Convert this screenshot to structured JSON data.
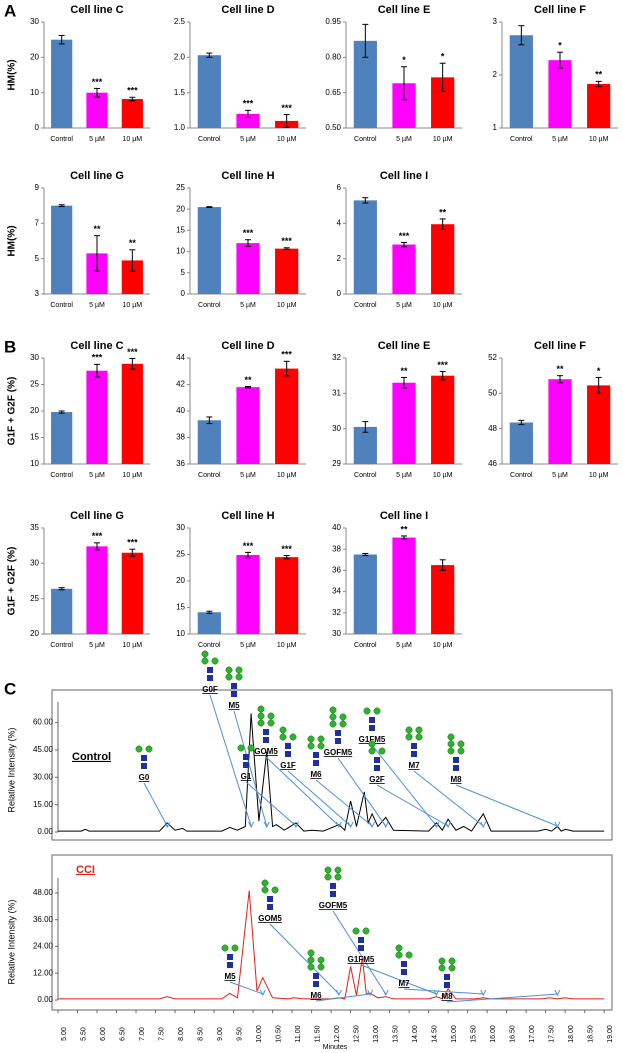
{
  "panel_labels": [
    "A",
    "B",
    "C"
  ],
  "chart_data": [
    {
      "type": "bar",
      "title": "Cell line C",
      "y_label": "HM(%)",
      "categories": [
        "Control",
        "5 µM",
        "10 µM"
      ],
      "colors": [
        "#4f81bd",
        "#ff00ff",
        "#ff0000"
      ],
      "values": [
        25,
        10,
        8.2
      ],
      "errors": [
        1.2,
        1.2,
        0.5
      ],
      "significance": [
        null,
        "***",
        "***"
      ],
      "ylim": [
        0,
        30
      ],
      "yticks": [
        0,
        10,
        20,
        30
      ]
    },
    {
      "type": "bar",
      "title": "Cell line D",
      "categories": [
        "Control",
        "5 µM",
        "10 µM"
      ],
      "colors": [
        "#4f81bd",
        "#ff00ff",
        "#ff0000"
      ],
      "values": [
        2.03,
        1.2,
        1.1
      ],
      "errors": [
        0.03,
        0.05,
        0.09
      ],
      "significance": [
        null,
        "***",
        "***"
      ],
      "ylim": [
        1,
        2.5
      ],
      "yticks": [
        {
          "value": 1,
          "label": "1.0"
        },
        {
          "value": 1.5,
          "label": "1.5"
        },
        {
          "value": 2,
          "label": "2.0"
        },
        {
          "value": 2.5,
          "label": "2.5"
        }
      ]
    },
    {
      "type": "bar",
      "title": "Cell line E",
      "categories": [
        "Control",
        "5 µM",
        "10 µM"
      ],
      "colors": [
        "#4f81bd",
        "#ff00ff",
        "#ff0000"
      ],
      "values": [
        0.87,
        0.69,
        0.715
      ],
      "errors": [
        0.07,
        0.07,
        0.06
      ],
      "significance": [
        null,
        "*",
        "*"
      ],
      "ylim": [
        0.5,
        0.95
      ],
      "yticks": [
        {
          "value": 0.5,
          "label": "0.50"
        },
        0.65,
        {
          "value": 0.8,
          "label": "0.80"
        },
        0.95
      ]
    },
    {
      "type": "bar",
      "title": "Cell line F",
      "categories": [
        "Control",
        "5 µM",
        "10 µM"
      ],
      "colors": [
        "#4f81bd",
        "#ff00ff",
        "#ff0000"
      ],
      "values": [
        2.75,
        2.28,
        1.83
      ],
      "errors": [
        0.18,
        0.15,
        0.05
      ],
      "significance": [
        null,
        "*",
        "**"
      ],
      "ylim": [
        1,
        3
      ],
      "yticks": [
        1,
        2,
        3
      ]
    },
    {
      "type": "bar",
      "title": "Cell line G",
      "y_label": "HM(%)",
      "categories": [
        "Control",
        "5 µM",
        "10 µM"
      ],
      "colors": [
        "#4f81bd",
        "#ff00ff",
        "#ff0000"
      ],
      "values": [
        8.0,
        5.3,
        4.9
      ],
      "errors": [
        0.05,
        1.0,
        0.6
      ],
      "significance": [
        null,
        "**",
        "**"
      ],
      "ylim": [
        3,
        9
      ],
      "yticks": [
        3,
        5,
        7,
        9
      ]
    },
    {
      "type": "bar",
      "title": "Cell line H",
      "categories": [
        "Control",
        "5 µM",
        "10 µM"
      ],
      "colors": [
        "#4f81bd",
        "#ff00ff",
        "#ff0000"
      ],
      "values": [
        20.5,
        12,
        10.7
      ],
      "errors": [
        0.1,
        0.8,
        0.2
      ],
      "significance": [
        null,
        "***",
        "***"
      ],
      "ylim": [
        0,
        25
      ],
      "yticks": [
        0,
        5,
        10,
        15,
        20,
        25
      ]
    },
    {
      "type": "bar",
      "title": "Cell line I",
      "categories": [
        "Control",
        "5 µM",
        "10 µM"
      ],
      "colors": [
        "#4f81bd",
        "#ff00ff",
        "#ff0000"
      ],
      "values": [
        5.3,
        2.8,
        3.95
      ],
      "errors": [
        0.15,
        0.12,
        0.3
      ],
      "significance": [
        null,
        "***",
        "**"
      ],
      "ylim": [
        0,
        6
      ],
      "yticks": [
        0,
        2,
        4,
        6
      ]
    },
    {
      "type": "bar",
      "title": "Cell line C",
      "y_label": "G1F + G2F (%)",
      "categories": [
        "Control",
        "5 µM",
        "10 µM"
      ],
      "colors": [
        "#4f81bd",
        "#ff00ff",
        "#ff0000"
      ],
      "values": [
        19.8,
        27.6,
        28.9
      ],
      "errors": [
        0.2,
        1.2,
        1.0
      ],
      "significance": [
        null,
        "***",
        "***"
      ],
      "ylim": [
        10,
        30
      ],
      "yticks": [
        10,
        15,
        20,
        25,
        30
      ]
    },
    {
      "type": "bar",
      "title": "Cell line D",
      "categories": [
        "Control",
        "5 µM",
        "10 µM"
      ],
      "colors": [
        "#4f81bd",
        "#ff00ff",
        "#ff0000"
      ],
      "values": [
        39.3,
        41.8,
        43.2
      ],
      "errors": [
        0.25,
        0.05,
        0.55
      ],
      "significance": [
        null,
        "**",
        "***"
      ],
      "ylim": [
        36,
        44
      ],
      "yticks": [
        36,
        38,
        40,
        42,
        44
      ]
    },
    {
      "type": "bar",
      "title": "Cell line E",
      "categories": [
        "Control",
        "5 µM",
        "10 µM"
      ],
      "colors": [
        "#4f81bd",
        "#ff00ff",
        "#ff0000"
      ],
      "values": [
        30.05,
        31.3,
        31.5
      ],
      "errors": [
        0.15,
        0.15,
        0.12
      ],
      "significance": [
        null,
        "**",
        "***"
      ],
      "ylim": [
        29,
        32
      ],
      "yticks": [
        29,
        30,
        31,
        32
      ]
    },
    {
      "type": "bar",
      "title": "Cell line F",
      "categories": [
        "Control",
        "5 µM",
        "10 µM"
      ],
      "colors": [
        "#4f81bd",
        "#ff00ff",
        "#ff0000"
      ],
      "values": [
        48.35,
        50.8,
        50.45
      ],
      "errors": [
        0.12,
        0.2,
        0.45
      ],
      "significance": [
        null,
        "**",
        "*"
      ],
      "ylim": [
        46,
        52
      ],
      "yticks": [
        46,
        48,
        50,
        52
      ]
    },
    {
      "type": "bar",
      "title": "Cell line G",
      "y_label": "G1F + G2F (%)",
      "categories": [
        "Control",
        "5 µM",
        "10 µM"
      ],
      "colors": [
        "#4f81bd",
        "#ff00ff",
        "#ff0000"
      ],
      "values": [
        26.4,
        32.4,
        31.5
      ],
      "errors": [
        0.15,
        0.5,
        0.5
      ],
      "significance": [
        null,
        "***",
        "***"
      ],
      "ylim": [
        20,
        35
      ],
      "yticks": [
        20,
        25,
        30,
        35
      ]
    },
    {
      "type": "bar",
      "title": "Cell line H",
      "categories": [
        "Control",
        "5 µM",
        "10 µM"
      ],
      "colors": [
        "#4f81bd",
        "#ff00ff",
        "#ff0000"
      ],
      "values": [
        14.1,
        24.9,
        24.5
      ],
      "errors": [
        0.2,
        0.5,
        0.3
      ],
      "significance": [
        null,
        "***",
        "***"
      ],
      "ylim": [
        10,
        30
      ],
      "yticks": [
        10,
        15,
        20,
        25,
        30
      ]
    },
    {
      "type": "bar",
      "title": "Cell line I",
      "categories": [
        "Control",
        "5 µM",
        "10 µM"
      ],
      "colors": [
        "#4f81bd",
        "#ff00ff",
        "#ff0000"
      ],
      "values": [
        37.5,
        39.1,
        36.5
      ],
      "errors": [
        0.1,
        0.15,
        0.5
      ],
      "significance": [
        null,
        "**",
        null
      ],
      "ylim": [
        30,
        40
      ],
      "yticks": [
        30,
        32,
        34,
        36,
        38,
        40
      ]
    },
    {
      "type": "line",
      "y_label": "Relative Intensity (%)",
      "xlim": [
        5,
        19.2
      ],
      "ylim": [
        0,
        68
      ],
      "yticks": [
        {
          "value": 0,
          "label": "0.00"
        },
        {
          "value": 15,
          "label": "15.00"
        },
        {
          "value": 30,
          "label": "30.00"
        },
        {
          "value": 45,
          "label": "45.00"
        },
        {
          "value": 60,
          "label": "60.00"
        }
      ],
      "x": [
        5.0,
        5.6,
        5.7,
        5.8,
        7.6,
        7.8,
        8.0,
        8.2,
        8.3,
        9.2,
        9.4,
        9.6,
        9.8,
        9.95,
        10.15,
        10.35,
        10.5,
        10.6,
        10.8,
        11.1,
        11.3,
        11.5,
        11.8,
        12.2,
        12.35,
        12.5,
        12.65,
        12.85,
        12.95,
        13.05,
        13.2,
        13.4,
        13.6,
        14.5,
        14.7,
        14.85,
        15.0,
        15.2,
        15.4,
        15.6,
        15.9,
        16.1,
        17.3,
        17.5,
        17.65,
        17.8,
        17.9,
        18.0,
        18.2,
        19.0
      ],
      "series": [
        {
          "name": "Control",
          "color": "#000000",
          "values": [
            0.5,
            0.5,
            1.5,
            0.5,
            0.5,
            5,
            1,
            2,
            0.5,
            0.5,
            2.5,
            1,
            3,
            65,
            6,
            44,
            3,
            4,
            1,
            5,
            0.5,
            1,
            0.5,
            4,
            1,
            17,
            3,
            22,
            5,
            10,
            3,
            8,
            1,
            0.5,
            5,
            1,
            7,
            1,
            3,
            0.5,
            10,
            0.5,
            0.5,
            1.5,
            0.5,
            3,
            0.5,
            1.5,
            0.5,
            0.5
          ]
        }
      ],
      "annotations": [
        {
          "text": "G0",
          "x": 7.8
        },
        {
          "text": "G0F",
          "x": 9.95
        },
        {
          "text": "M5",
          "x": 10.35
        },
        {
          "text": "GOM5",
          "x": 12.2
        },
        {
          "text": "G1",
          "x": 11.1
        },
        {
          "text": "G1F",
          "x": 12.5
        },
        {
          "text": "M6",
          "x": 13.05
        },
        {
          "text": "GOFM5",
          "x": 13.4
        },
        {
          "text": "G1FM5",
          "x": 14.7
        },
        {
          "text": "G2F",
          "x": 15.0
        },
        {
          "text": "M7",
          "x": 15.9
        },
        {
          "text": "M8",
          "x": 17.8
        }
      ]
    },
    {
      "type": "line",
      "y_label": "Relative Intensity (%)",
      "x_label": "Minutes",
      "xlim": [
        5,
        19.2
      ],
      "ylim": [
        0,
        52
      ],
      "yticks": [
        {
          "value": 0,
          "label": "0.00"
        },
        {
          "value": 12,
          "label": "12.00"
        },
        {
          "value": 24,
          "label": "24.00"
        },
        {
          "value": 36,
          "label": "36.00"
        },
        {
          "value": 48,
          "label": "48.00"
        }
      ],
      "xticks": [
        {
          "value": 5,
          "label": "5.00"
        },
        {
          "value": 5.5,
          "label": "5.50"
        },
        {
          "value": 6,
          "label": "6.00"
        },
        {
          "value": 6.5,
          "label": "6.50"
        },
        {
          "value": 7,
          "label": "7.00"
        },
        {
          "value": 7.5,
          "label": "7.50"
        },
        {
          "value": 8,
          "label": "8.00"
        },
        {
          "value": 8.5,
          "label": "8.50"
        },
        {
          "value": 9,
          "label": "9.00"
        },
        {
          "value": 9.5,
          "label": "9.50"
        },
        {
          "value": 10,
          "label": "10.00"
        },
        {
          "value": 10.5,
          "label": "10.50"
        },
        {
          "value": 11,
          "label": "11.00"
        },
        {
          "value": 11.5,
          "label": "11.50"
        },
        {
          "value": 12,
          "label": "12.00"
        },
        {
          "value": 12.5,
          "label": "12.50"
        },
        {
          "value": 13,
          "label": "13.00"
        },
        {
          "value": 13.5,
          "label": "13.50"
        },
        {
          "value": 14,
          "label": "14.00"
        },
        {
          "value": 14.5,
          "label": "14.50"
        },
        {
          "value": 15,
          "label": "15.00"
        },
        {
          "value": 15.5,
          "label": "15.50"
        },
        {
          "value": 16,
          "label": "16.00"
        },
        {
          "value": 16.5,
          "label": "16.50"
        },
        {
          "value": 17,
          "label": "17.00"
        },
        {
          "value": 17.5,
          "label": "17.50"
        },
        {
          "value": 18,
          "label": "18.00"
        },
        {
          "value": 18.5,
          "label": "18.50"
        },
        {
          "value": 19,
          "label": "19.00"
        }
      ],
      "x": [
        5.0,
        7.6,
        7.8,
        8.0,
        9.2,
        9.4,
        9.6,
        9.9,
        10.1,
        10.25,
        10.5,
        10.9,
        11.05,
        11.3,
        12.0,
        12.2,
        12.35,
        12.5,
        12.65,
        12.8,
        12.9,
        13.0,
        13.2,
        13.4,
        13.6,
        14.5,
        14.7,
        14.85,
        15.0,
        15.2,
        15.7,
        15.9,
        16.1,
        17.4,
        17.6,
        17.8,
        18.0,
        18.2,
        19.0
      ],
      "series": [
        {
          "name": "CCI",
          "color": "#e0201a",
          "values": [
            0.5,
            0.5,
            1.5,
            0.5,
            0.5,
            3,
            1,
            49,
            4,
            10,
            1,
            0.5,
            1,
            0.5,
            0.5,
            1,
            0.5,
            15,
            2,
            19,
            3,
            3,
            1,
            1.5,
            0.5,
            0.5,
            1.5,
            0.5,
            5,
            0.5,
            0.5,
            1,
            0.5,
            0.5,
            1,
            0.5,
            1,
            0.5,
            0.5
          ]
        }
      ],
      "annotations": [
        {
          "text": "M5",
          "x": 10.25
        },
        {
          "text": "GOM5",
          "x": 12.2
        },
        {
          "text": "GOFM5",
          "x": 13.4
        },
        {
          "text": "M6",
          "x": 13.0
        },
        {
          "text": "G1FM5",
          "x": 14.7
        },
        {
          "text": "M7",
          "x": 15.9
        },
        {
          "text": "M8",
          "x": 17.8
        }
      ]
    }
  ]
}
